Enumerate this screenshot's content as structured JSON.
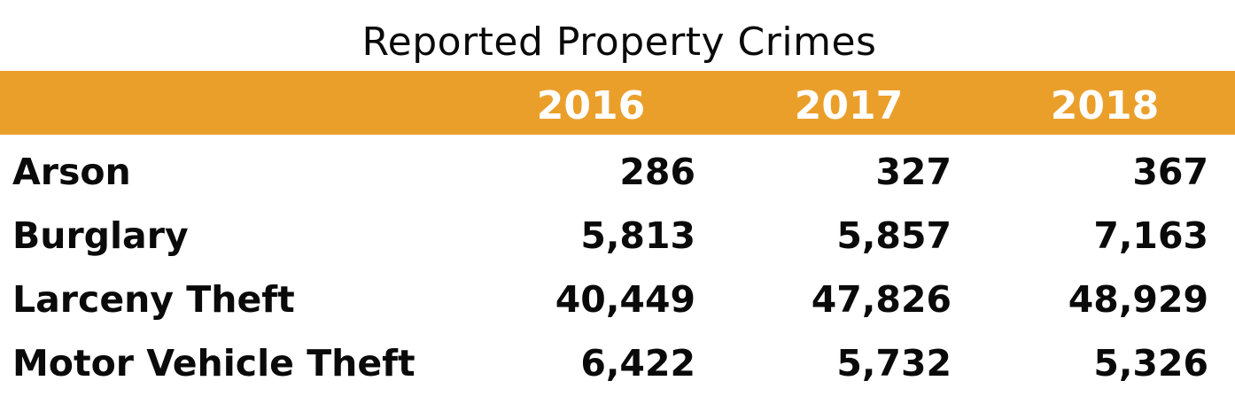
{
  "chart_data": {
    "type": "table",
    "title": "Reported Property Crimes",
    "columns": [
      "2016",
      "2017",
      "2018"
    ],
    "rows": [
      {
        "label": "Arson",
        "values": [
          "286",
          "327",
          "367"
        ]
      },
      {
        "label": "Burglary",
        "values": [
          "5,813",
          "5,857",
          "7,163"
        ]
      },
      {
        "label": "Larceny Theft",
        "values": [
          "40,449",
          "47,826",
          "48,929"
        ]
      },
      {
        "label": "Motor Vehicle Theft",
        "values": [
          "6,422",
          "5,732",
          "5,326"
        ]
      }
    ],
    "colors": {
      "header_band": "#eb9f2b",
      "header_text": "#ffffff",
      "body_text": "#0a0a0a"
    }
  }
}
